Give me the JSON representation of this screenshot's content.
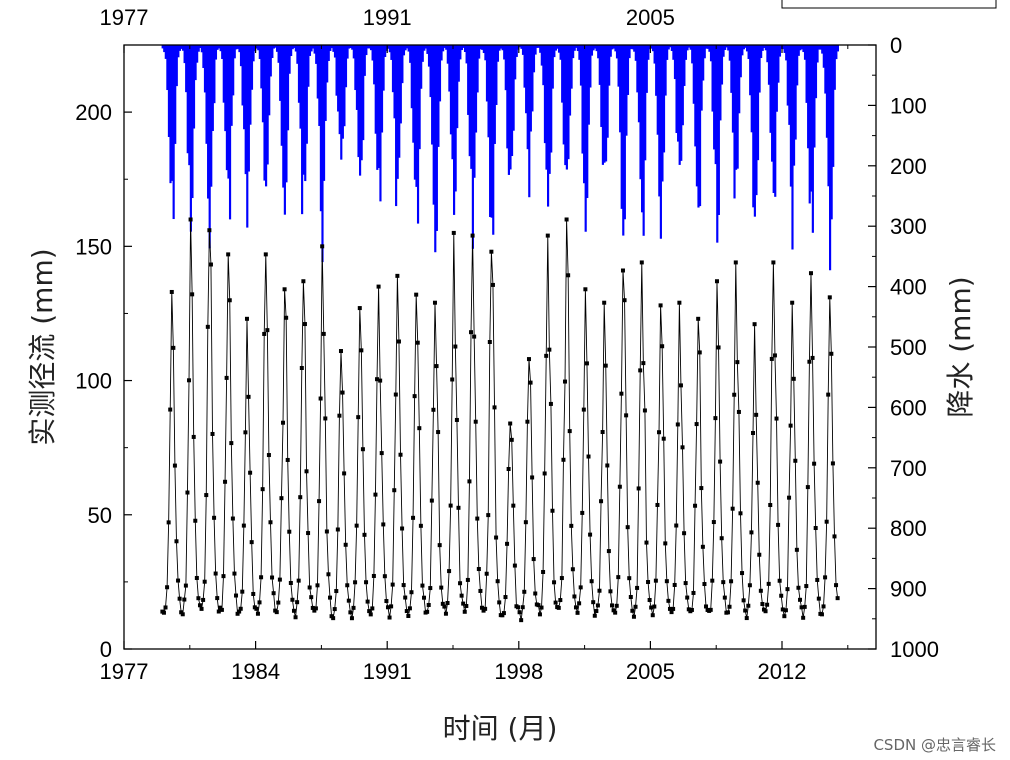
{
  "watermark": "CSDN @忠言睿长",
  "chart_data": {
    "type": "line",
    "xlabel": "时间 (月)",
    "ylabel_left": "实测径流 (mm)",
    "ylabel_right": "降水 (mm)",
    "xlim": [
      1977,
      2017
    ],
    "xticks": [
      "1977",
      "1984",
      "1991",
      "1998",
      "2005",
      "2012"
    ],
    "top_xticks": [
      "1977",
      "1991",
      "2005"
    ],
    "ylim_left": [
      0,
      225
    ],
    "yticks_left": [
      "0",
      "50",
      "100",
      "150",
      "200"
    ],
    "ylim_right": [
      0,
      1000
    ],
    "right_axis_inverted": true,
    "yticks_right": [
      "0",
      "100",
      "200",
      "300",
      "400",
      "500",
      "600",
      "700",
      "800",
      "900",
      "1000"
    ],
    "colors": {
      "runoff": "#000000",
      "precip": "#0000ff"
    },
    "runoff_series": {
      "name": "实测径流",
      "start_year": 1979,
      "end_year": 2014,
      "annual_peaks_mm": [
        133,
        160,
        156,
        147,
        123,
        147,
        134,
        137,
        150,
        111,
        127,
        135,
        139,
        132,
        129,
        155,
        154,
        148,
        84,
        108,
        154,
        160,
        134,
        129,
        141,
        144,
        128,
        129,
        123,
        137,
        144,
        121,
        144,
        129,
        140,
        131
      ],
      "baseflow_mm": 8
    },
    "precip_series": {
      "name": "降水",
      "start_year": 1979,
      "end_year": 2014,
      "annual_peak_monthly_mm": [
        285,
        300,
        310,
        280,
        310,
        240,
        250,
        285,
        300,
        240,
        250,
        270,
        280,
        290,
        300,
        250,
        310,
        330,
        260,
        210,
        290,
        260,
        270,
        240,
        280,
        300,
        310,
        250,
        260,
        300,
        260,
        290,
        250,
        300,
        320,
        310
      ],
      "dry_season_mm": 0
    }
  }
}
